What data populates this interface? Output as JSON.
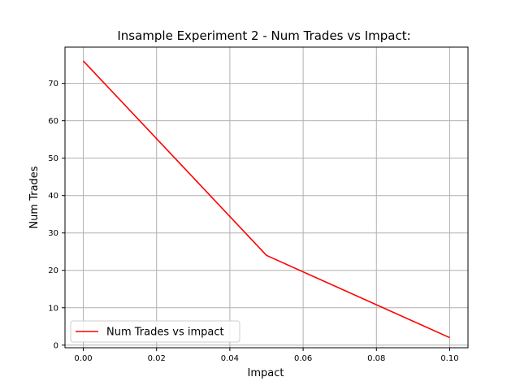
{
  "chart_data": {
    "type": "line",
    "title": "Insample Experiment 2 - Num Trades vs Impact:",
    "xlabel": "Impact",
    "ylabel": "Num Trades",
    "xlim": [
      -0.005,
      0.105
    ],
    "ylim": [
      -0.7,
      79.7
    ],
    "xticks": [
      0.0,
      0.02,
      0.04,
      0.06,
      0.08,
      0.1
    ],
    "xtick_labels": [
      "0.00",
      "0.02",
      "0.04",
      "0.06",
      "0.08",
      "0.10"
    ],
    "yticks": [
      0,
      10,
      20,
      30,
      40,
      50,
      60,
      70
    ],
    "ytick_labels": [
      "0",
      "10",
      "20",
      "30",
      "40",
      "50",
      "60",
      "70"
    ],
    "grid": true,
    "legend_position": "lower-left",
    "series": [
      {
        "name": "Num Trades vs impact",
        "color": "#ff0000",
        "x": [
          0.0,
          0.05,
          0.1
        ],
        "y": [
          76,
          24,
          2
        ]
      }
    ]
  }
}
